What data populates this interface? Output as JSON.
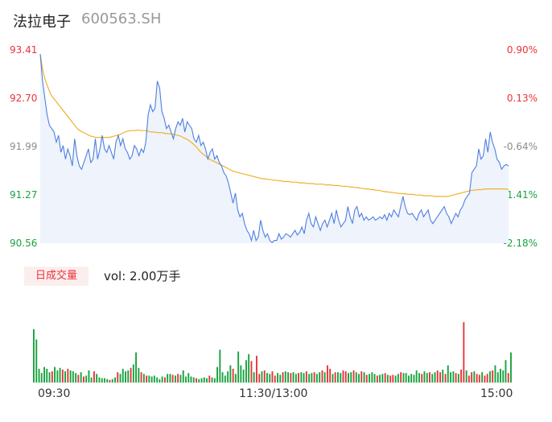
{
  "header": {
    "name": "法拉电子",
    "code": "600563.SH"
  },
  "volume_panel": {
    "badge": "日成交量",
    "text": "vol: 2.00万手"
  },
  "colors": {
    "price_line": "#4f7fe0",
    "avg_line": "#f0b12b",
    "area_fill": "#eef3fc",
    "up": "#e8343a",
    "down": "#18a33e",
    "flat": "#8c8c8c"
  },
  "chart_data": [
    {
      "type": "line",
      "title": "",
      "series": [
        {
          "name": "",
          "values": [
            93.35,
            92.95,
            92.7,
            92.45,
            92.3,
            92.25,
            92.2,
            92.05,
            92.15,
            91.9,
            92.0,
            91.8,
            91.95,
            91.85,
            91.7,
            92.1,
            91.85,
            91.7,
            91.65,
            91.75,
            91.85,
            91.95,
            91.75,
            91.8,
            92.1,
            91.8,
            91.95,
            92.15,
            91.95,
            91.9,
            92.0,
            91.9,
            91.8,
            92.05,
            92.15,
            92.0,
            92.1,
            91.95,
            91.9,
            91.8,
            91.85,
            92.0,
            91.95,
            91.85,
            91.95,
            91.9,
            92.05,
            92.45,
            92.6,
            92.5,
            92.55,
            92.95,
            92.85,
            92.5,
            92.4,
            92.25,
            92.3,
            92.2,
            92.1,
            92.25,
            92.35,
            92.3,
            92.4,
            92.2,
            92.35,
            92.3,
            92.25,
            92.1,
            92.05,
            92.15,
            92.0,
            92.05,
            91.95,
            91.8,
            91.9,
            91.95,
            91.8,
            91.85,
            91.75,
            91.7,
            91.6,
            91.55,
            91.45,
            91.3,
            91.15,
            91.3,
            91.05,
            90.95,
            91.0,
            90.85,
            90.75,
            90.7,
            90.6,
            90.75,
            90.6,
            90.65,
            90.9,
            90.75,
            90.65,
            90.7,
            90.6,
            90.57,
            90.6,
            90.6,
            90.7,
            90.62,
            90.65,
            90.7,
            90.68,
            90.65,
            90.7,
            90.75,
            90.68,
            90.72,
            90.8,
            90.7,
            90.9,
            91.0,
            90.85,
            90.8,
            90.95,
            90.85,
            90.75,
            90.85,
            90.9,
            90.8,
            90.9,
            91.0,
            90.85,
            91.05,
            90.9,
            90.8,
            90.85,
            90.9,
            91.1,
            90.95,
            90.85,
            91.05,
            91.1,
            90.95,
            91.0,
            90.9,
            90.95,
            90.9,
            90.92,
            90.95,
            90.9,
            90.92,
            90.95,
            90.92,
            90.98,
            90.9,
            91.0,
            90.95,
            91.05,
            91.0,
            90.95,
            91.1,
            91.25,
            91.1,
            91.0,
            90.98,
            91.0,
            90.95,
            90.9,
            91.0,
            91.05,
            90.95,
            91.0,
            91.05,
            90.9,
            90.85,
            90.9,
            90.95,
            91.0,
            91.05,
            91.1,
            91.0,
            90.95,
            90.85,
            90.92,
            91.0,
            90.95,
            91.05,
            91.1,
            91.2,
            91.25,
            91.3,
            91.6,
            91.65,
            91.7,
            91.95,
            91.8,
            91.85,
            92.1,
            91.9,
            92.2,
            92.05,
            91.95,
            91.8,
            91.75,
            91.65,
            91.7,
            91.72,
            91.7
          ],
          "color": "price_line"
        },
        {
          "name": "",
          "values": [
            93.35,
            93.1,
            92.95,
            92.85,
            92.75,
            92.7,
            92.65,
            92.6,
            92.55,
            92.5,
            92.45,
            92.4,
            92.35,
            92.3,
            92.25,
            92.22,
            92.2,
            92.18,
            92.16,
            92.14,
            92.13,
            92.12,
            92.12,
            92.12,
            92.12,
            92.12,
            92.12,
            92.13,
            92.14,
            92.15,
            92.16,
            92.18,
            92.2,
            92.21,
            92.22,
            92.22,
            92.22,
            92.23,
            92.22,
            92.22,
            92.22,
            92.21,
            92.2,
            92.2,
            92.19,
            92.19,
            92.19,
            92.18,
            92.18,
            92.17,
            92.17,
            92.16,
            92.15,
            92.14,
            92.12,
            92.1,
            92.08,
            92.05,
            92.02,
            91.98,
            91.93,
            91.89,
            91.86,
            91.83,
            91.8,
            91.78,
            91.76,
            91.74,
            91.72,
            91.7,
            91.68,
            91.66,
            91.64,
            91.62,
            91.61,
            91.6,
            91.59,
            91.58,
            91.57,
            91.56,
            91.55,
            91.54,
            91.53,
            91.52,
            91.51,
            91.51,
            91.5,
            91.5,
            91.49,
            91.49,
            91.48,
            91.48,
            91.47,
            91.47,
            91.47,
            91.46,
            91.46,
            91.46,
            91.45,
            91.45,
            91.45,
            91.44,
            91.44,
            91.44,
            91.43,
            91.43,
            91.43,
            91.43,
            91.42,
            91.42,
            91.42,
            91.41,
            91.41,
            91.41,
            91.4,
            91.4,
            91.4,
            91.39,
            91.39,
            91.38,
            91.38,
            91.37,
            91.37,
            91.36,
            91.36,
            91.35,
            91.35,
            91.34,
            91.34,
            91.33,
            91.32,
            91.32,
            91.31,
            91.31,
            91.3,
            91.3,
            91.29,
            91.29,
            91.29,
            91.28,
            91.28,
            91.28,
            91.27,
            91.27,
            91.27,
            91.26,
            91.26,
            91.26,
            91.26,
            91.25,
            91.25,
            91.25,
            91.25,
            91.25,
            91.25,
            91.26,
            91.27,
            91.28,
            91.29,
            91.3,
            91.31,
            91.32,
            91.33,
            91.34,
            91.34,
            91.35,
            91.35,
            91.35,
            91.36,
            91.36,
            91.36,
            91.36,
            91.36,
            91.36,
            91.36,
            91.36,
            91.36,
            91.35
          ],
          "color": "avg_line"
        }
      ],
      "ylim": [
        90.56,
        93.41
      ],
      "yticks_left": [
        "93.41",
        "92.70",
        "91.99",
        "91.27",
        "90.56"
      ],
      "yticks_right": [
        "0.90%",
        "0.13%",
        "-0.64%",
        "-1.41%",
        "-2.18%"
      ],
      "xticks": [
        "09:30",
        "11:30/13:00",
        "15:00"
      ]
    },
    {
      "type": "bar",
      "title": "",
      "values": [
        0.62,
        0.5,
        0.16,
        0.11,
        0.18,
        0.16,
        0.12,
        0.13,
        0.18,
        0.14,
        0.17,
        0.15,
        0.13,
        0.16,
        0.14,
        0.13,
        0.11,
        0.09,
        0.12,
        0.07,
        0.08,
        0.14,
        0.06,
        0.13,
        0.1,
        0.06,
        0.05,
        0.05,
        0.04,
        0.03,
        0.04,
        0.06,
        0.12,
        0.1,
        0.16,
        0.13,
        0.14,
        0.17,
        0.21,
        0.35,
        0.17,
        0.12,
        0.1,
        0.08,
        0.08,
        0.07,
        0.08,
        0.06,
        0.04,
        0.07,
        0.06,
        0.1,
        0.1,
        0.09,
        0.08,
        0.1,
        0.09,
        0.14,
        0.07,
        0.11,
        0.07,
        0.06,
        0.05,
        0.04,
        0.05,
        0.06,
        0.05,
        0.08,
        0.06,
        0.05,
        0.18,
        0.38,
        0.12,
        0.08,
        0.13,
        0.2,
        0.16,
        0.1,
        0.36,
        0.2,
        0.15,
        0.26,
        0.33,
        0.25,
        0.12,
        0.31,
        0.1,
        0.13,
        0.14,
        0.11,
        0.1,
        0.13,
        0.08,
        0.11,
        0.09,
        0.12,
        0.13,
        0.12,
        0.11,
        0.12,
        0.1,
        0.11,
        0.12,
        0.11,
        0.13,
        0.1,
        0.11,
        0.12,
        0.1,
        0.12,
        0.14,
        0.12,
        0.2,
        0.16,
        0.1,
        0.12,
        0.12,
        0.11,
        0.14,
        0.13,
        0.11,
        0.12,
        0.14,
        0.12,
        0.1,
        0.13,
        0.12,
        0.09,
        0.1,
        0.12,
        0.1,
        0.08,
        0.09,
        0.1,
        0.11,
        0.09,
        0.08,
        0.09,
        0.08,
        0.1,
        0.12,
        0.11,
        0.11,
        0.08,
        0.1,
        0.09,
        0.14,
        0.11,
        0.1,
        0.13,
        0.11,
        0.12,
        0.1,
        0.12,
        0.14,
        0.12,
        0.15,
        0.1,
        0.2,
        0.12,
        0.13,
        0.11,
        0.1,
        0.15,
        0.7,
        0.14,
        0.08,
        0.12,
        0.13,
        0.1,
        0.09,
        0.12,
        0.08,
        0.1,
        0.13,
        0.14,
        0.2,
        0.12,
        0.16,
        0.14,
        0.26,
        0.11,
        0.35
      ],
      "ylim": [
        0,
        1.0
      ]
    }
  ]
}
